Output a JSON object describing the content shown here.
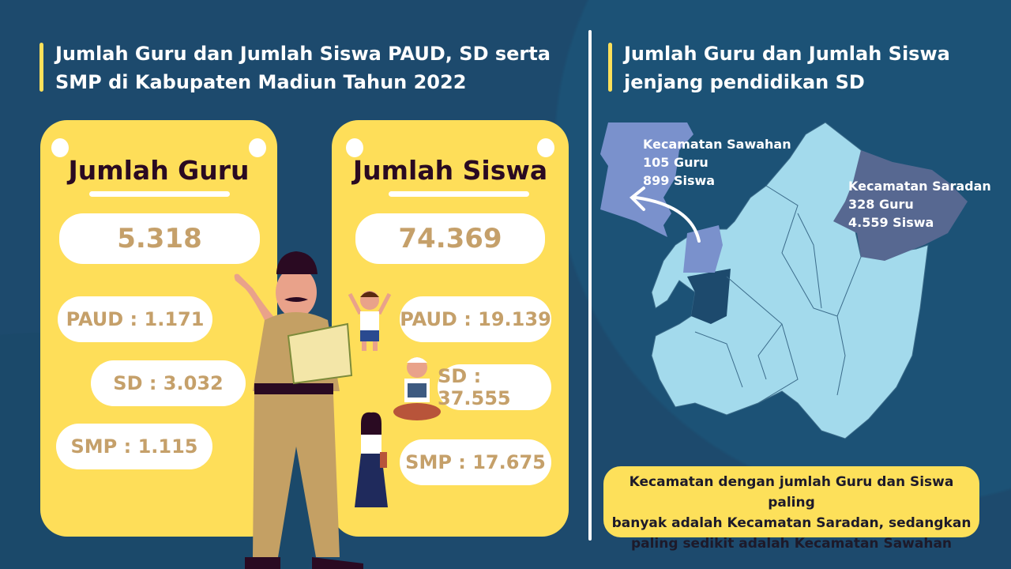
{
  "left": {
    "title_line1": "Jumlah Guru dan Jumlah Siswa PAUD, SD serta",
    "title_line2": "SMP di Kabupaten Madiun Tahun 2022"
  },
  "right": {
    "title_line1": "Jumlah Guru dan Jumlah Siswa",
    "title_line2": "jenjang pendidikan SD"
  },
  "guru": {
    "heading": "Jumlah Guru",
    "total": "5.318",
    "items": [
      "PAUD : 1.171",
      "SD : 3.032",
      "SMP : 1.115"
    ]
  },
  "siswa": {
    "heading": "Jumlah Siswa",
    "total": "74.369",
    "items": [
      "PAUD : 19.139",
      "SD : 37.555",
      "SMP : 17.675"
    ]
  },
  "map": {
    "sawahan": {
      "name": "Kecamatan Sawahan",
      "guru": "105 Guru",
      "siswa": "899 Siswa"
    },
    "saradan": {
      "name": "Kecamatan Saradan",
      "guru": "328 Guru",
      "siswa": "4.559 Siswa"
    }
  },
  "note": {
    "line1": "Kecamatan dengan jumlah Guru dan Siswa paling",
    "line2": "banyak adalah Kecamatan Saradan, sedangkan",
    "line3": "paling sedikit adalah Kecamatan Sawahan"
  },
  "colors": {
    "background": "#1d4a6d",
    "card": "#fede59",
    "number": "#c5a06a",
    "map": "#a3daec",
    "sawahan": "#7a91cc",
    "saradan": "#576891"
  }
}
